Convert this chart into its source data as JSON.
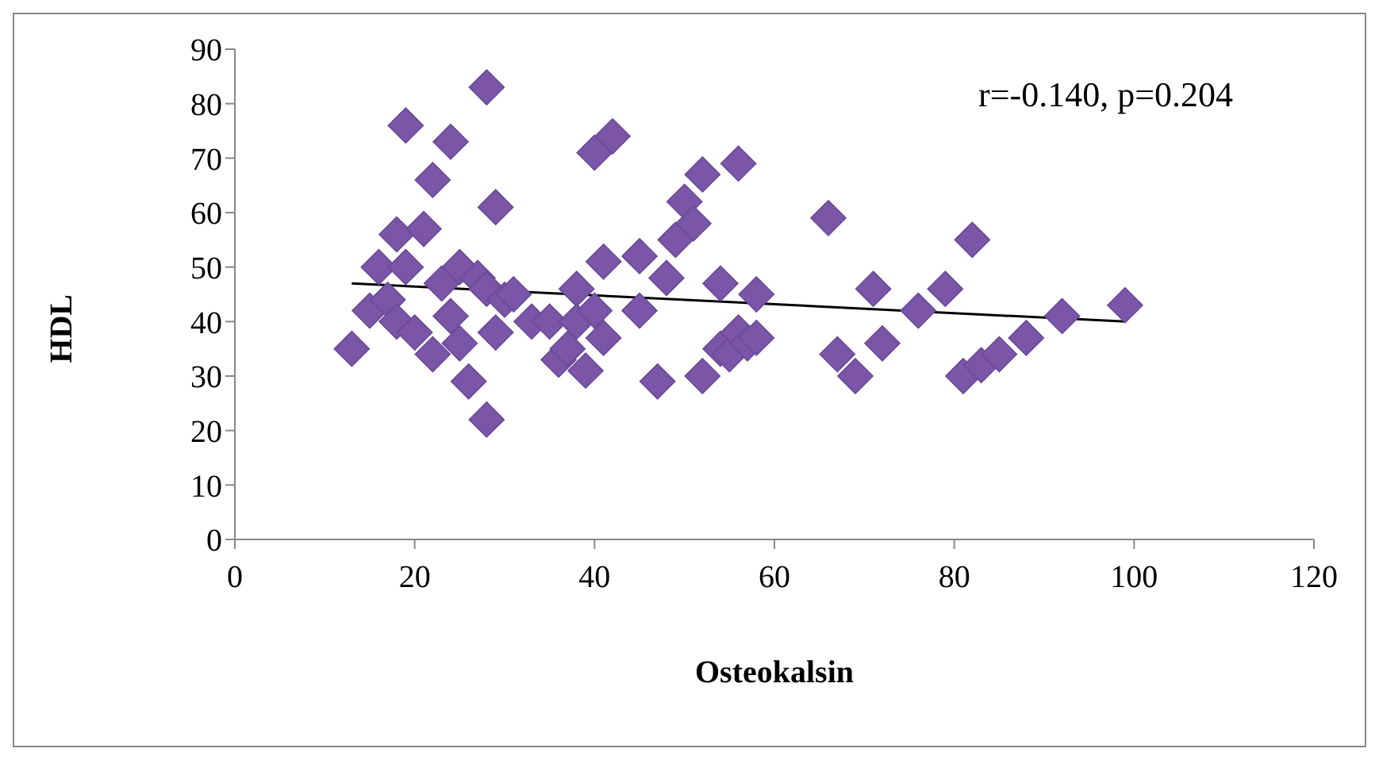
{
  "chart_data": {
    "type": "scatter",
    "xlabel": "Osteokalsin",
    "ylabel": "HDL",
    "annotations": [
      "r=-0.140, p=0.204"
    ],
    "xlim": [
      0,
      120
    ],
    "xticks": [
      0,
      20,
      40,
      60,
      80,
      100,
      120
    ],
    "ylim": [
      0,
      90
    ],
    "yticks": [
      0,
      10,
      20,
      30,
      40,
      50,
      60,
      70,
      80,
      90
    ],
    "grid": false,
    "marker": "diamond",
    "series": [
      {
        "color": "#7a55a8",
        "x": [
          13,
          15,
          16,
          17,
          18,
          19,
          19,
          18,
          20,
          21,
          22,
          22,
          23,
          24,
          24,
          25,
          25,
          26,
          27,
          28,
          28,
          28,
          29,
          29,
          30,
          31,
          33,
          35,
          36,
          37,
          38,
          38,
          39,
          40,
          40,
          41,
          41,
          42,
          45,
          45,
          47,
          48,
          49,
          50,
          51,
          52,
          52,
          54,
          54,
          55,
          56,
          56,
          57,
          58,
          58,
          66,
          67,
          69,
          71,
          72,
          76,
          79,
          81,
          82,
          83,
          85,
          88,
          92,
          99
        ],
        "values": [
          35,
          42,
          50,
          44,
          56,
          76,
          50,
          40,
          38,
          57,
          66,
          34,
          47,
          73,
          41,
          50,
          36,
          29,
          48,
          83,
          22,
          46,
          61,
          38,
          44,
          45,
          40,
          40,
          33,
          35,
          46,
          40,
          31,
          71,
          42,
          51,
          37,
          74,
          52,
          42,
          29,
          48,
          55,
          62,
          58,
          67,
          30,
          47,
          35,
          34,
          69,
          38,
          36,
          45,
          37,
          59,
          34,
          30,
          46,
          36,
          42,
          46,
          30,
          55,
          32,
          34,
          37,
          41,
          43
        ]
      },
      {
        "type": "line",
        "color": "#000000",
        "marker": "none",
        "x": [
          13,
          99
        ],
        "values": [
          47,
          40
        ]
      }
    ]
  }
}
